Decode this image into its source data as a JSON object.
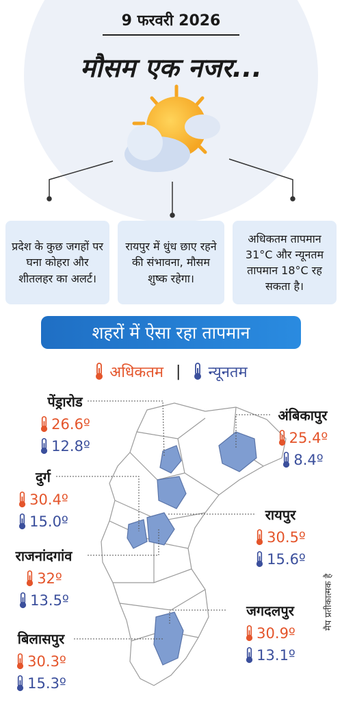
{
  "header": {
    "date": "9 फरवरी 2026",
    "title": "मौसम एक नजर..."
  },
  "notes": [
    "प्रदेश के कुछ जगहों पर घना कोहरा और शीतलहर का अलर्ट।",
    "रायपुर में धुंध छाए रहने की संभावना, मौसम शुष्क रहेगा।",
    "अधिकतम तापमान 31°C और न्यूनतम तापमान 18°C रह सकता है।"
  ],
  "section": {
    "title": "शहरों में ऐसा रहा तापमान",
    "legend": {
      "max": "अधिकतम",
      "separator": "|",
      "min": "न्यूनतम"
    }
  },
  "cities": [
    {
      "name": "पेंड्रारोड",
      "max": "26.6º",
      "min": "12.8º"
    },
    {
      "name": "अंबिकापुर",
      "max": "25.4º",
      "min": "8.4º"
    },
    {
      "name": "दुर्ग",
      "max": "30.4º",
      "min": "15.0º"
    },
    {
      "name": "रायपुर",
      "max": "30.5º",
      "min": "15.6º"
    },
    {
      "name": "राजनांदगांव",
      "max": "32º",
      "min": "13.5º"
    },
    {
      "name": "जगदलपुर",
      "max": "30.9º",
      "min": "13.1º"
    },
    {
      "name": "बिलासपुर",
      "max": "30.3º",
      "min": "15.3º"
    }
  ],
  "map_note": "मैप प्रतीकात्मक है"
}
